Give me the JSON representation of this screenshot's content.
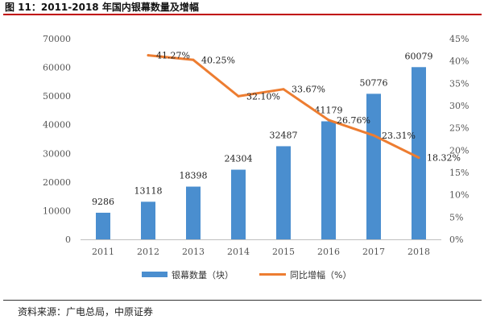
{
  "figure": {
    "title": "图 11：2011-2018 年国内银幕数量及增幅",
    "source": "资料来源：广电总局，中原证券"
  },
  "chart_data": {
    "type": "bar+line",
    "categories": [
      "2011",
      "2012",
      "2013",
      "2014",
      "2015",
      "2016",
      "2017",
      "2018"
    ],
    "series": [
      {
        "name": "银幕数量（块）",
        "type": "bar",
        "axis": "left",
        "color": "#4a8ecf",
        "values": [
          9286,
          13118,
          18398,
          24304,
          32487,
          41179,
          50776,
          60079
        ],
        "labels": [
          "9286",
          "13118",
          "18398",
          "24304",
          "32487",
          "41179",
          "50776",
          "60079"
        ]
      },
      {
        "name": "同比增幅（%）",
        "type": "line",
        "axis": "right",
        "color": "#ed7d31",
        "values": [
          null,
          41.27,
          40.25,
          32.1,
          33.67,
          26.76,
          23.31,
          18.32
        ],
        "labels": [
          "",
          "41.27%",
          "40.25%",
          "32.10%",
          "33.67%",
          "26.76%",
          "23.31%",
          "18.32%"
        ]
      }
    ],
    "y_left": {
      "min": 0,
      "max": 70000,
      "ticks": [
        "0",
        "10000",
        "20000",
        "30000",
        "40000",
        "50000",
        "60000",
        "70000"
      ]
    },
    "y_right": {
      "min": 0,
      "max": 45,
      "ticks": [
        "0%",
        "5%",
        "10%",
        "15%",
        "20%",
        "25%",
        "30%",
        "35%",
        "40%",
        "45%"
      ]
    },
    "grid": false,
    "legend_position": "bottom"
  }
}
